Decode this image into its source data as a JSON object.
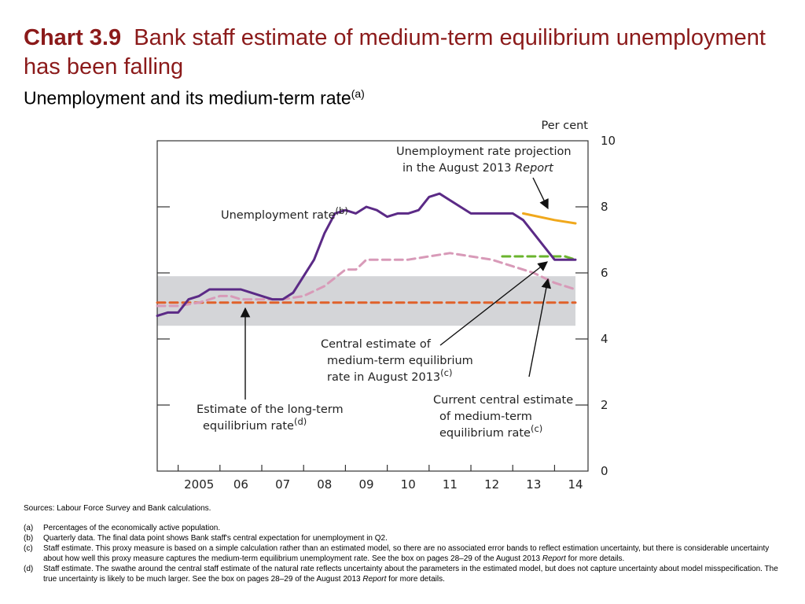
{
  "header": {
    "chart_number": "Chart 3.9",
    "title": "Bank staff estimate of medium-term equilibrium unemployment has been falling",
    "subtitle": "Unemployment and its medium-term rate",
    "subtitle_note": "(a)"
  },
  "chart_data": {
    "type": "line",
    "title": "Bank staff estimate of medium-term equilibrium unemployment has been falling",
    "subtitle": "Unemployment and its medium-term rate(a)",
    "y_unit": "Per cent",
    "ylim": [
      0,
      10
    ],
    "y_ticks": [
      "0",
      "2",
      "4",
      "6",
      "8",
      "10"
    ],
    "x_tick_labels": [
      "2005",
      "06",
      "07",
      "08",
      "09",
      "10",
      "11",
      "12",
      "13",
      "14"
    ],
    "x_unit": "year",
    "xlim": [
      2004.5,
      2014.8
    ],
    "band": {
      "y_from": 4.4,
      "y_to": 5.9,
      "x_from": 2004.5,
      "x_to": 2014.5,
      "color": "#d4d5d8",
      "label": "swathe around long-term equilibrium estimate"
    },
    "series": [
      {
        "name": "Unemployment rate",
        "name_note": "(b)",
        "style": "solid",
        "color": "#5b2a86",
        "x": [
          2004.5,
          2004.75,
          2005.0,
          2005.25,
          2005.5,
          2005.75,
          2006.0,
          2006.25,
          2006.5,
          2006.75,
          2007.0,
          2007.25,
          2007.5,
          2007.75,
          2008.0,
          2008.25,
          2008.5,
          2008.75,
          2009.0,
          2009.25,
          2009.5,
          2009.75,
          2010.0,
          2010.25,
          2010.5,
          2010.75,
          2011.0,
          2011.25,
          2011.5,
          2011.75,
          2012.0,
          2012.25,
          2012.5,
          2012.75,
          2013.0,
          2013.25,
          2013.5,
          2013.75,
          2014.0,
          2014.25,
          2014.5
        ],
        "y": [
          4.7,
          4.8,
          4.8,
          5.2,
          5.3,
          5.5,
          5.5,
          5.5,
          5.5,
          5.4,
          5.3,
          5.2,
          5.2,
          5.4,
          5.9,
          6.4,
          7.2,
          7.8,
          7.9,
          7.8,
          8.0,
          7.9,
          7.7,
          7.8,
          7.8,
          7.9,
          8.3,
          8.4,
          8.2,
          8.0,
          7.8,
          7.8,
          7.8,
          7.8,
          7.8,
          7.6,
          7.2,
          6.8,
          6.4,
          6.4,
          6.4
        ]
      },
      {
        "name": "Unemployment rate projection in the August 2013 Report",
        "style": "solid",
        "color": "#f0a81c",
        "x": [
          2013.25,
          2014.0,
          2014.5
        ],
        "y": [
          7.8,
          7.6,
          7.5
        ]
      },
      {
        "name": "Current central estimate of medium-term equilibrium rate",
        "name_note": "(c)",
        "style": "dashed",
        "color": "#d89ab8",
        "x": [
          2004.5,
          2005.0,
          2005.5,
          2006.0,
          2006.25,
          2006.5,
          2007.0,
          2007.5,
          2008.0,
          2008.5,
          2009.0,
          2009.25,
          2009.5,
          2010.0,
          2010.5,
          2011.0,
          2011.5,
          2012.0,
          2012.5,
          2013.0,
          2013.5,
          2014.0,
          2014.5
        ],
        "y": [
          5.0,
          5.0,
          5.1,
          5.3,
          5.3,
          5.2,
          5.2,
          5.2,
          5.3,
          5.6,
          6.1,
          6.1,
          6.4,
          6.4,
          6.4,
          6.5,
          6.6,
          6.5,
          6.4,
          6.2,
          6.0,
          5.7,
          5.5
        ]
      },
      {
        "name": "Central estimate of medium-term equilibrium rate in August 2013",
        "name_note": "(c)",
        "style": "dashed",
        "color": "#6ab42d",
        "x": [
          2012.75,
          2013.0,
          2013.5,
          2014.0,
          2014.25,
          2014.5
        ],
        "y": [
          6.5,
          6.5,
          6.5,
          6.5,
          6.5,
          6.4
        ]
      },
      {
        "name": "Estimate of the long-term equilibrium rate",
        "name_note": "(d)",
        "style": "dashed",
        "color": "#e0612a",
        "x": [
          2004.5,
          2014.5
        ],
        "y": [
          5.1,
          5.1
        ]
      }
    ],
    "annotations": [
      {
        "lines": [
          "Unemployment rate projection",
          "in the August 2013 "
        ],
        "italic_tail": "Report",
        "target": "projection"
      },
      {
        "lines": [
          "Unemployment rate"
        ],
        "note": "(b)",
        "target": "unemployment"
      },
      {
        "lines": [
          "Central estimate of",
          "medium-term equilibrium",
          "rate in August 2013"
        ],
        "note": "(c)",
        "target": "aug2013-estimate"
      },
      {
        "lines": [
          "Current central estimate",
          "of medium-term",
          "equilibrium rate"
        ],
        "note": "(c)",
        "target": "current-estimate"
      },
      {
        "lines": [
          "Estimate of the long-term",
          "equilibrium rate"
        ],
        "note": "(d)",
        "target": "long-term"
      }
    ],
    "grid": false,
    "legend": "none (inline annotations)"
  },
  "notes": {
    "sources": "Sources: Labour Force Survey and Bank calculations.",
    "items": [
      {
        "label": "(a)",
        "text": "Percentages of the economically active population."
      },
      {
        "label": "(b)",
        "text": "Quarterly data. The final data point shows Bank staff's central expectation for unemployment in Q2."
      },
      {
        "label": "(c)",
        "text_before": "Staff estimate. This proxy measure is based on a simple calculation rather than an estimated model, so there are no associated error bands to reflect estimation uncertainty, but there is considerable uncertainty about how well this proxy measure captures the medium-term equilibrium unemployment rate. See the box on pages 28–29 of the August 2013 ",
        "italic": "Report",
        "text_after": " for more details."
      },
      {
        "label": "(d)",
        "text_before": "Staff estimate. The swathe around the central staff estimate of the natural rate reflects uncertainty about the parameters in the estimated model, but does not capture uncertainty about model misspecification. The true uncertainty is likely to be much larger. See the box on pages 28–29 of the August 2013 ",
        "italic": "Report",
        "text_after": " for more details."
      }
    ]
  }
}
